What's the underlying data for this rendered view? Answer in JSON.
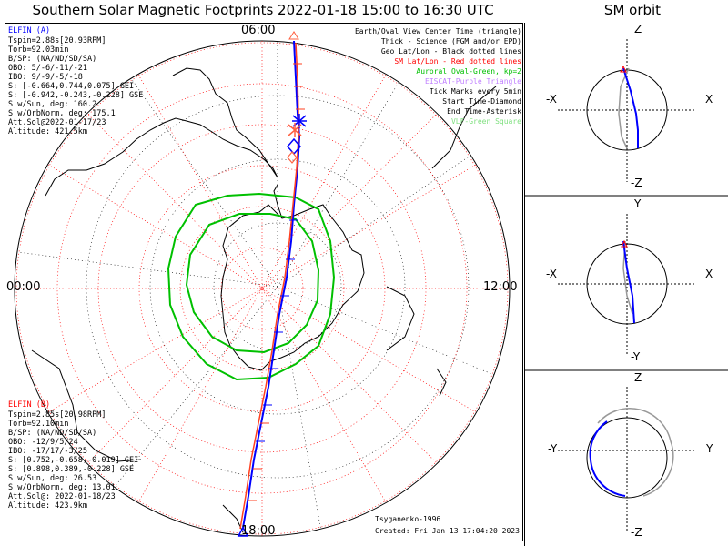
{
  "title": "Southern Solar Magnetic Footprints 2022-01-18 15:00 to 16:30 UTC",
  "orbit_title": "SM orbit",
  "mlt_labels": {
    "top": "06:00",
    "left": "00:00",
    "right": "12:00",
    "bottom": "18:00"
  },
  "elfin_a": {
    "name": "ELFIN (A)",
    "color": "#0000ff",
    "lines": [
      "Tspin=2.88s[20.93RPM]",
      "Torb=92.03min",
      "B/SP: (NA/ND/SD/SA)",
      "OBO: 5/-6/-11/-21",
      "IBO: 9/-9/-5/-18",
      "S: [-0.664,0.744,0.075] GEI",
      "S: [-0.942,-0.243,-0.228] GSE",
      "S w/Sun, deg: 160.2",
      "S w/OrbNorm, deg: 175.1",
      "Att.Sol@2022-01-17/23",
      "Altitude: 421.5km"
    ]
  },
  "elfin_b": {
    "name": "ELFIN (B)",
    "color": "#ff0000",
    "lines": [
      "Tspin=2.85s[20.98RPM]",
      "Torb=92.10min",
      "B/SP: (NA/ND/SD/SA)",
      "OBO: -12/9/5/24",
      "IBO: -17/17/-3/25",
      "S: [0.752,-0.658,-0.019] GEI",
      "S: [0.898,0.389,-0.228] GSE",
      "S w/Sun, deg: 26.53",
      "S w/OrbNorm, deg: 13.01",
      "Att.Sol@: 2022-01-18/23",
      "Altitude: 423.9km"
    ]
  },
  "legend": [
    {
      "text": "Earth/Oval View Center Time (triangle)",
      "color": "#000000"
    },
    {
      "text": "Thick - Science (FGM and/or EPD)",
      "color": "#000000"
    },
    {
      "text": "Geo Lat/Lon - Black dotted lines",
      "color": "#000000"
    },
    {
      "text": "SM Lat/Lon - Red dotted lines",
      "color": "#ff0000"
    },
    {
      "text": "Auroral Oval-Green, kp=2",
      "color": "#00c000"
    },
    {
      "text": "EISCAT-Purple Triangle",
      "color": "#c080ff"
    },
    {
      "text": "Tick Marks every 5min",
      "color": "#000000"
    },
    {
      "text": "Start Time-Diamond",
      "color": "#000000"
    },
    {
      "text": "End Time-Asterisk",
      "color": "#000000"
    },
    {
      "text": "VLF-Green Square",
      "color": "#80e080"
    }
  ],
  "footer": {
    "credit": "Tsyganenko-1996",
    "created": "Created: Fri Jan 13 17:04:20 2023"
  },
  "orbit_panels": [
    {
      "top": "Z",
      "bottom": "-Z",
      "left": "-X",
      "right": "X"
    },
    {
      "top": "Y",
      "bottom": "-Y",
      "left": "-X",
      "right": "X"
    },
    {
      "top": "Z",
      "bottom": "-Z",
      "left": "-Y",
      "right": "Y"
    }
  ]
}
